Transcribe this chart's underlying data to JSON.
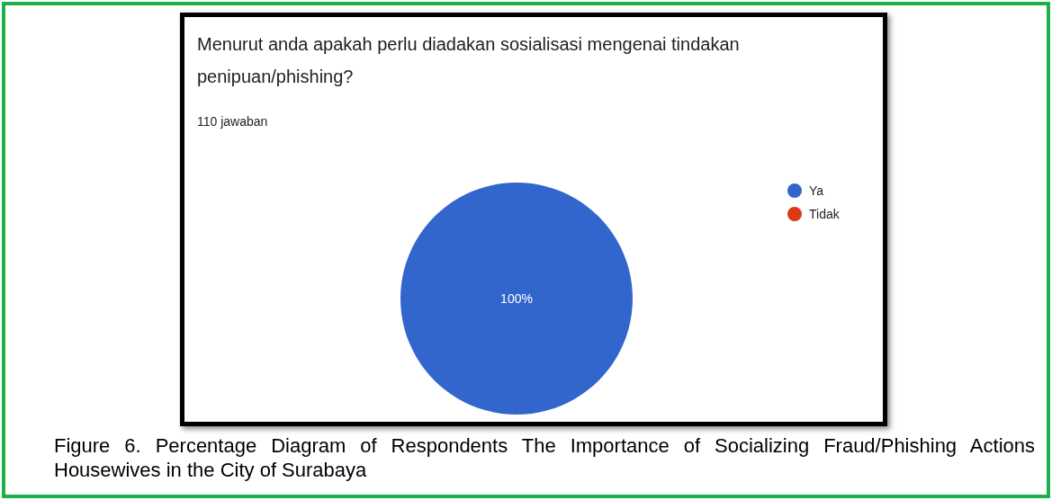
{
  "chart_data": {
    "type": "pie",
    "title": "Menurut anda apakah perlu diadakan sosialisasi mengenai tindakan penipuan/phishing?",
    "subtitle": "110 jawaban",
    "categories": [
      "Ya",
      "Tidak"
    ],
    "values": [
      100,
      0
    ],
    "colors": [
      "#3366cc",
      "#dc3912"
    ],
    "value_labels": [
      "100%",
      null
    ],
    "legend": "right",
    "annotations": [
      "Figure 6. Percentage Diagram of Respondents The Importance of Socializing Fraud/Phishing Actions Housewives in the City of Surabaya"
    ]
  }
}
